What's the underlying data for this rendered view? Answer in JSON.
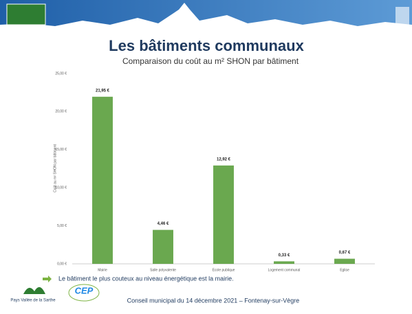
{
  "chart_data": {
    "type": "bar",
    "title": "Les bâtiments communaux",
    "subtitle": "Comparaison du coût au m² SHON par bâtiment",
    "y_label": "Coût au m² SHON par bâtiment",
    "categories": [
      "Mairie",
      "Salle polyvalente",
      "Ecole publique",
      "Logement communal",
      "Eglise"
    ],
    "values": [
      21.95,
      4.46,
      12.92,
      0.33,
      0.67
    ],
    "value_labels": [
      "21,95 €",
      "4,46 €",
      "12,92 €",
      "0,33 €",
      "0,67 €"
    ],
    "color": "#6aa84f",
    "ylim": [
      0,
      25
    ],
    "yticks": [
      {
        "value": 0,
        "label": "0,00 €"
      },
      {
        "value": 5,
        "label": "5,00 €"
      },
      {
        "value": 10,
        "label": "10,00 €"
      },
      {
        "value": 15,
        "label": "15,00 €"
      },
      {
        "value": 20,
        "label": "20,00 €"
      },
      {
        "value": 25,
        "label": "25,00 €"
      }
    ],
    "grid": false
  },
  "footer": {
    "note": "Le bâtiment le plus couteux au niveau énergétique est la mairie.",
    "meeting": "Conseil municipal du 14 décembre 2021 – Fontenay-sur-Vègre",
    "logos": [
      "Pays Vallée de la Sarthe",
      "CEP"
    ]
  }
}
